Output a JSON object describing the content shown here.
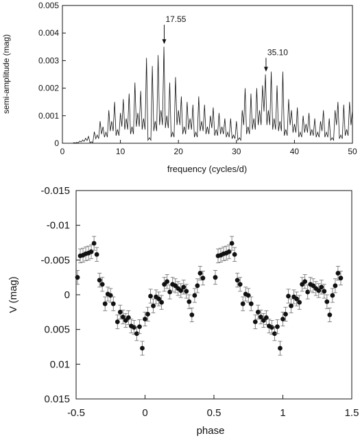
{
  "chart_data": [
    {
      "type": "line",
      "title": "",
      "xlabel": "frequency (cycles/d)",
      "ylabel": "semi-amplitude (mag)",
      "xlim": [
        0,
        50
      ],
      "ylim": [
        0,
        0.005
      ],
      "xticks": [
        {
          "value": 0,
          "label": "0"
        },
        {
          "value": 10,
          "label": "10"
        },
        {
          "value": 20,
          "label": "20"
        },
        {
          "value": 30,
          "label": "30"
        },
        {
          "value": 40,
          "label": "40"
        },
        {
          "value": 50,
          "label": "50"
        }
      ],
      "yticks": [
        {
          "value": 0,
          "label": "0"
        },
        {
          "value": 0.001,
          "label": "0.001"
        },
        {
          "value": 0.002,
          "label": "0.002"
        },
        {
          "value": 0.003,
          "label": "0.003"
        },
        {
          "value": 0.004,
          "label": "0.004"
        },
        {
          "value": 0.005,
          "label": "0.005"
        }
      ],
      "grid": false,
      "series": [
        {
          "values": [
            [
              0,
              0
            ],
            [
              0.5,
              0
            ],
            [
              1,
              0
            ],
            [
              1.5,
              0
            ],
            [
              2,
              2e-05
            ],
            [
              2.5,
              3e-05
            ],
            [
              3,
              8e-05
            ],
            [
              3.5,
              0.00012
            ],
            [
              4,
              0.00018
            ],
            [
              4.5,
              0.00025
            ],
            [
              5,
              5e-05
            ],
            [
              5.5,
              0.00042
            ],
            [
              6,
              0.0003
            ],
            [
              6.5,
              0.0008
            ],
            [
              7,
              0.0006
            ],
            [
              7.5,
              0.0004
            ],
            [
              8,
              0.0012
            ],
            [
              8.5,
              0.0008
            ],
            [
              9,
              0.0015
            ],
            [
              9.5,
              0.0005
            ],
            [
              10,
              0.0011
            ],
            [
              10.5,
              0.0016
            ],
            [
              11,
              0.0009
            ],
            [
              11.5,
              0.0018
            ],
            [
              12,
              0.0006
            ],
            [
              12.5,
              0.0022
            ],
            [
              13,
              0.0011
            ],
            [
              13.5,
              0.0019
            ],
            [
              14,
              0.0009
            ],
            [
              14.5,
              0.0031
            ],
            [
              15,
              0.0002
            ],
            [
              15.5,
              0.0028
            ],
            [
              16,
              0.0008
            ],
            [
              16.5,
              0.0032
            ],
            [
              17,
              0.0012
            ],
            [
              17.5,
              0.0035
            ],
            [
              18,
              0.001
            ],
            [
              18.5,
              0.0022
            ],
            [
              19,
              0.0004
            ],
            [
              19.5,
              0.0024
            ],
            [
              20,
              0.0012
            ],
            [
              20.5,
              0.0017
            ],
            [
              21,
              0.0006
            ],
            [
              21.5,
              0.0015
            ],
            [
              22,
              0.0009
            ],
            [
              22.5,
              0.0014
            ],
            [
              23,
              0.0004
            ],
            [
              23.5,
              0.0017
            ],
            [
              24,
              0.0008
            ],
            [
              24.5,
              0.0014
            ],
            [
              25,
              0.0006
            ],
            [
              25.5,
              0.001
            ],
            [
              26,
              0.0013
            ],
            [
              26.5,
              0.0005
            ],
            [
              27,
              0.0011
            ],
            [
              27.5,
              0.0006
            ],
            [
              28,
              0.0009
            ],
            [
              28.5,
              0.0004
            ],
            [
              29,
              0.0009
            ],
            [
              29.5,
              0.0003
            ],
            [
              30,
              0.0008
            ],
            [
              30.5,
              0.0002
            ],
            [
              31,
              0.0012
            ],
            [
              31.5,
              0.002
            ],
            [
              32,
              0.0006
            ],
            [
              32.5,
              0.0018
            ],
            [
              33,
              0.0009
            ],
            [
              33.5,
              0.002
            ],
            [
              34,
              0.0012
            ],
            [
              34.5,
              0.0021
            ],
            [
              35,
              0.0025
            ],
            [
              35.5,
              0.0012
            ],
            [
              36,
              0.0026
            ],
            [
              36.5,
              0.0009
            ],
            [
              37,
              0.0021
            ],
            [
              37.5,
              0.0008
            ],
            [
              38,
              0.0026
            ],
            [
              38.5,
              0.0005
            ],
            [
              39,
              0.0016
            ],
            [
              39.5,
              0.0012
            ],
            [
              40,
              0.0007
            ],
            [
              40.5,
              0.0013
            ],
            [
              41,
              0.0004
            ],
            [
              41.5,
              0.001
            ],
            [
              42,
              0.0007
            ],
            [
              42.5,
              0.0011
            ],
            [
              43,
              0.0005
            ],
            [
              43.5,
              0.0009
            ],
            [
              44,
              0.0004
            ],
            [
              44.5,
              0.0008
            ],
            [
              45,
              0.0012
            ],
            [
              45.5,
              0.0004
            ],
            [
              46,
              0.0009
            ],
            [
              46.5,
              0.0002
            ],
            [
              47,
              0.0012
            ],
            [
              47.5,
              0.0015
            ],
            [
              48,
              0.0003
            ],
            [
              48.5,
              0.0014
            ],
            [
              49,
              0.0005
            ],
            [
              49.5,
              0.0015
            ],
            [
              50,
              0.0012
            ]
          ]
        }
      ],
      "annotations": [
        {
          "label": "17.55",
          "x": 17.55,
          "arrow_from": 0.0043,
          "arrow_to": 0.0036
        },
        {
          "label": "35.10",
          "x": 35.1,
          "arrow_from": 0.0031,
          "arrow_to": 0.0026
        }
      ]
    },
    {
      "type": "scatter",
      "title": "",
      "xlabel": "phase",
      "ylabel": "V (mag)",
      "xlim": [
        -0.5,
        1.5
      ],
      "ylim": [
        0.015,
        -0.015
      ],
      "y_inverted": true,
      "xticks": [
        {
          "value": -0.5,
          "label": "-0.5"
        },
        {
          "value": 0,
          "label": "0"
        },
        {
          "value": 0.5,
          "label": "0.5"
        },
        {
          "value": 1,
          "label": "1"
        },
        {
          "value": 1.5,
          "label": "1.5"
        }
      ],
      "yticks": [
        {
          "value": -0.015,
          "label": "-0.015"
        },
        {
          "value": -0.01,
          "label": "-0.01"
        },
        {
          "value": -0.005,
          "label": "-0.005"
        },
        {
          "value": 0,
          "label": "0"
        },
        {
          "value": 0.005,
          "label": "0.005"
        },
        {
          "value": 0.01,
          "label": "0.01"
        },
        {
          "value": 0.015,
          "label": "0.015"
        }
      ],
      "grid": false,
      "error_bar": 0.001,
      "series": [
        {
          "points": [
            [
              -0.49,
              -0.0025
            ],
            [
              -0.47,
              -0.0056
            ],
            [
              -0.45,
              -0.0057
            ],
            [
              -0.43,
              -0.0059
            ],
            [
              -0.41,
              -0.006
            ],
            [
              -0.39,
              -0.0062
            ],
            [
              -0.37,
              -0.0074
            ],
            [
              -0.35,
              -0.0058
            ],
            [
              -0.33,
              -0.0021
            ],
            [
              -0.31,
              -0.0015
            ],
            [
              -0.29,
              0.0013
            ],
            [
              -0.27,
              -0.0001
            ],
            [
              -0.25,
              0.0001
            ],
            [
              -0.23,
              0.0013
            ],
            [
              -0.2,
              0.0039
            ],
            [
              -0.18,
              0.0025
            ],
            [
              -0.16,
              0.0032
            ],
            [
              -0.14,
              0.0037
            ],
            [
              -0.12,
              0.0033
            ],
            [
              -0.1,
              0.0045
            ],
            [
              -0.08,
              0.0047
            ],
            [
              -0.06,
              0.0056
            ],
            [
              -0.04,
              0.0046
            ],
            [
              -0.02,
              0.0077
            ],
            [
              0,
              0.0035
            ],
            [
              0.02,
              0.0028
            ],
            [
              0.04,
              0.0002
            ],
            [
              0.06,
              0.0016
            ],
            [
              0.08,
              0.0003
            ],
            [
              0.1,
              0.0006
            ],
            [
              0.12,
              0.0011
            ],
            [
              0.14,
              -0.0015
            ],
            [
              0.16,
              -0.0019
            ],
            [
              0.18,
              -0.0004
            ],
            [
              0.2,
              -0.0015
            ],
            [
              0.22,
              -0.0013
            ],
            [
              0.24,
              -0.0009
            ],
            [
              0.26,
              -0.0006
            ],
            [
              0.28,
              -0.0011
            ],
            [
              0.3,
              -0.0005
            ],
            [
              0.32,
              0.001
            ],
            [
              0.34,
              0.0029
            ],
            [
              0.36,
              0.0001
            ],
            [
              0.38,
              -0.0013
            ],
            [
              0.4,
              -0.0031
            ],
            [
              0.42,
              -0.0024
            ]
          ]
        }
      ]
    }
  ]
}
